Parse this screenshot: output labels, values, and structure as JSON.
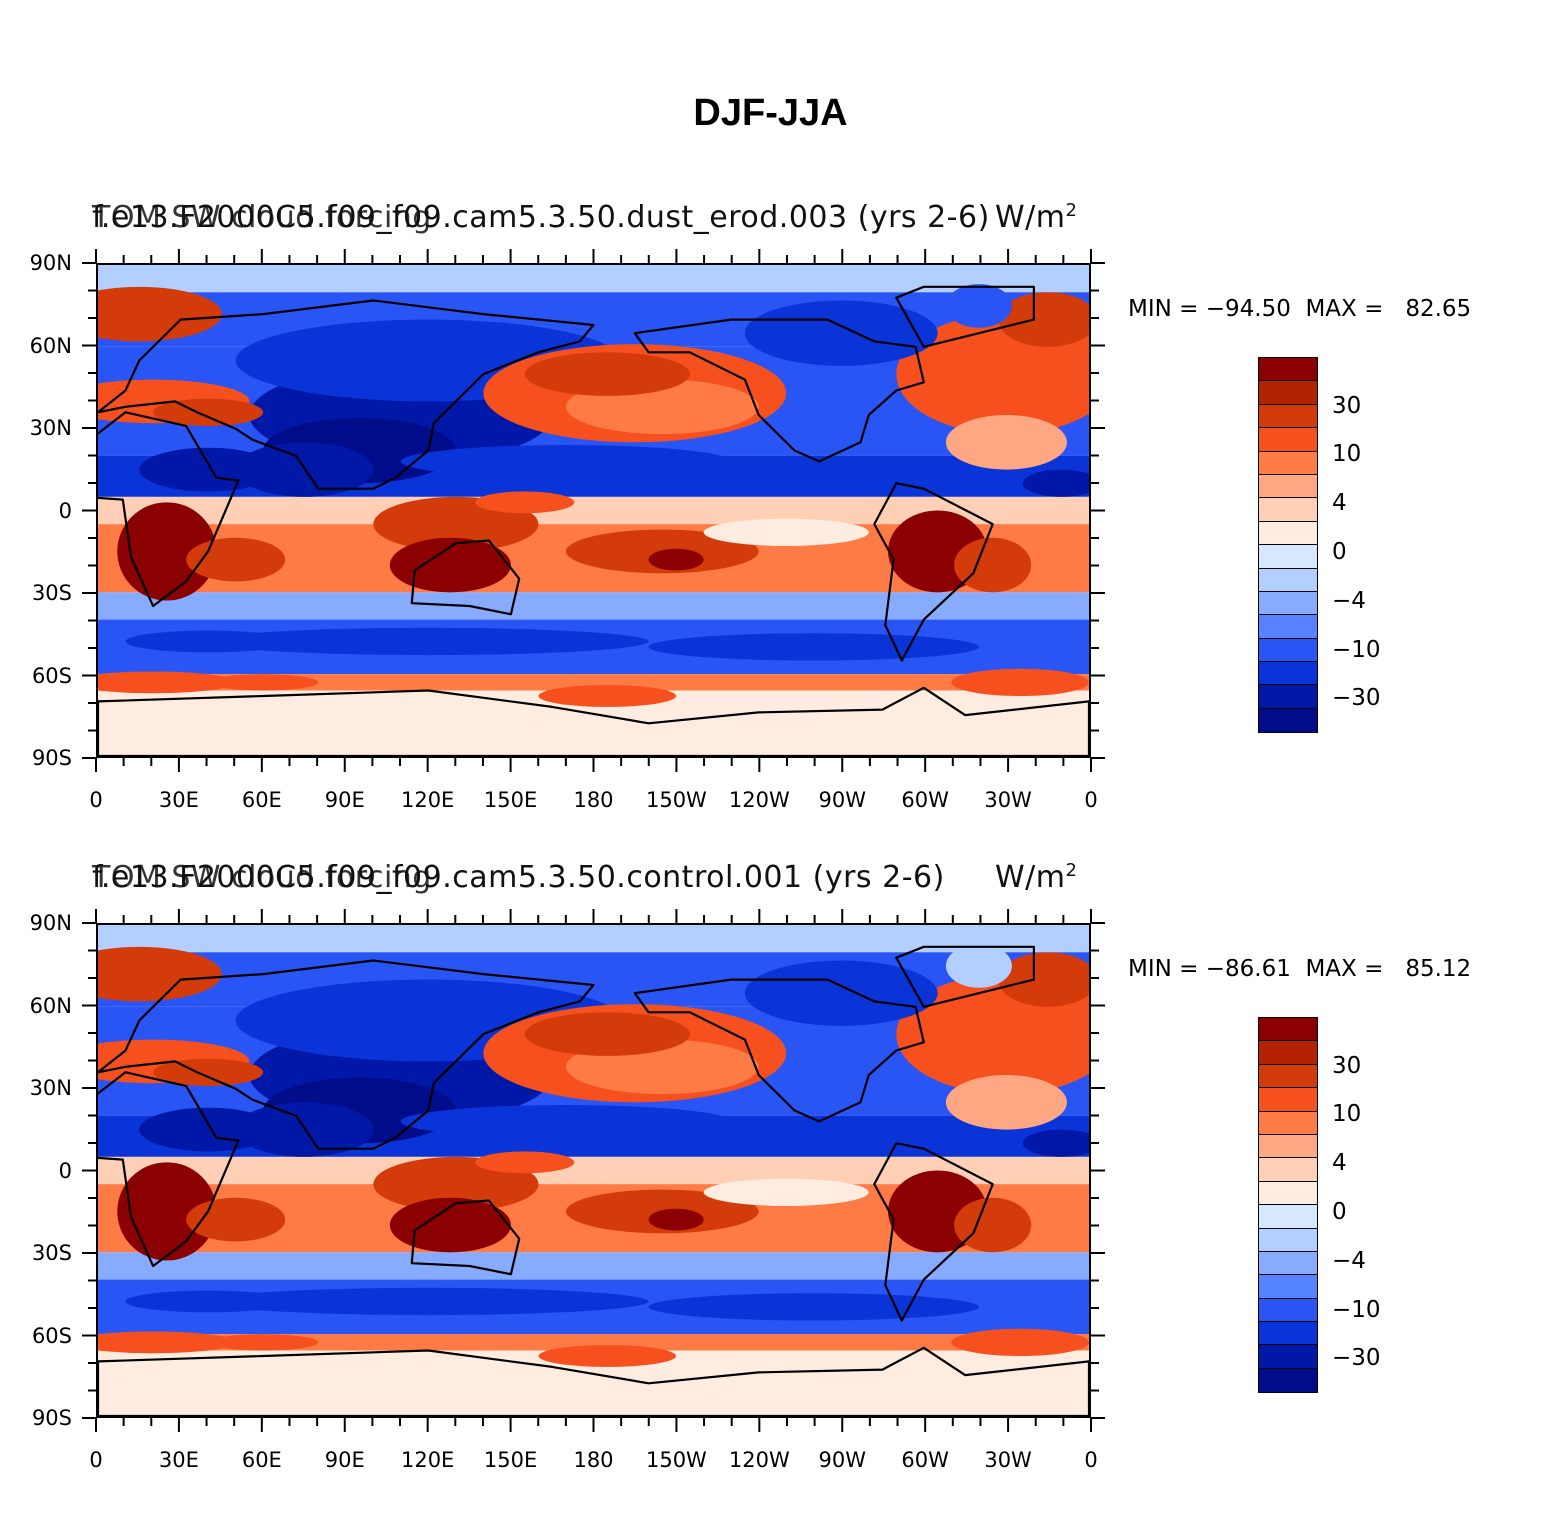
{
  "figure": {
    "title": "DJF-JJA"
  },
  "axes": {
    "lat_labels": [
      "90N",
      "60N",
      "30N",
      "0",
      "30S",
      "60S",
      "90S"
    ],
    "lon_labels": [
      "0",
      "30E",
      "60E",
      "90E",
      "120E",
      "150E",
      "180",
      "150W",
      "120W",
      "90W",
      "60W",
      "30W",
      "0"
    ]
  },
  "colorbar": {
    "colors": [
      "#8b0000",
      "#b22200",
      "#d43b0a",
      "#f5501e",
      "#ff7b45",
      "#ffa782",
      "#ffd0b5",
      "#ffece0",
      "#d6e8ff",
      "#b2cfff",
      "#87abff",
      "#5683ff",
      "#2a55f5",
      "#0a33d8",
      "#0018a8",
      "#000c8a"
    ],
    "labels": [
      "30",
      "10",
      "4",
      "0",
      "−4",
      "−10",
      "−30"
    ]
  },
  "panels": [
    {
      "case_title": "f.e13.F2000C5.f09_f09.cam5.3.50.dust_erod.003 (yrs 2-6)",
      "var_title": "TOM SW cloud forcing",
      "units": "W/m",
      "units_exp": "2",
      "min_max": "MIN = −94.50  MAX =   82.65"
    },
    {
      "case_title": "f.e13.F2000C5.f09_f09.cam5.3.50.control.001 (yrs 2-6)",
      "var_title": "TOM SW cloud forcing",
      "units": "W/m",
      "units_exp": "2",
      "min_max": "MIN = −86.61  MAX =   85.12"
    }
  ]
}
